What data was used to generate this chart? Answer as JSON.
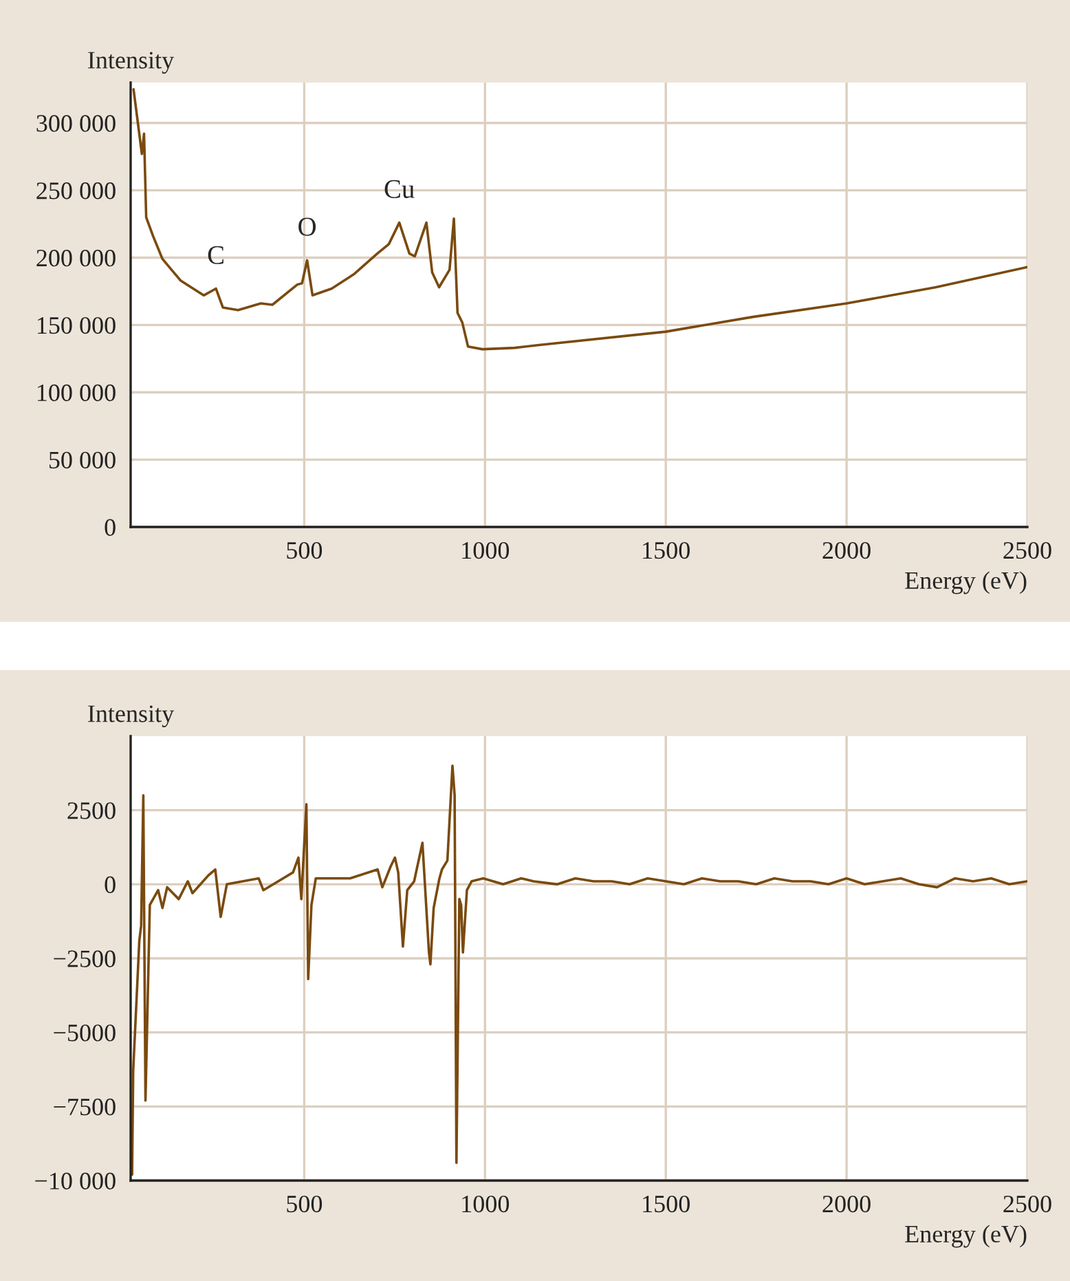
{
  "chart_data": [
    {
      "type": "line",
      "xlabel": "Energy (eV)",
      "ylabel": "Intensity",
      "xlim": [
        20,
        2500
      ],
      "xticks": [
        500,
        1000,
        1500,
        2000,
        2500
      ],
      "ylim": [
        0,
        330000
      ],
      "yticks": [
        0,
        {
          "value": 50000,
          "label": "50 000"
        },
        {
          "value": 100000,
          "label": "100 000"
        },
        {
          "value": 150000,
          "label": "150 000"
        },
        {
          "value": 200000,
          "label": "200 000"
        },
        {
          "value": 250000,
          "label": "250 000"
        },
        {
          "value": 300000,
          "label": "300 000"
        }
      ],
      "grid": true,
      "annotations": [
        {
          "text": "C",
          "x": 256,
          "y": 177000
        },
        {
          "text": "O",
          "x": 508,
          "y": 198000
        },
        {
          "text": "Cu",
          "x": 763,
          "y": 226000
        }
      ],
      "series": [
        {
          "color": "#7a4a0f",
          "x": [
            28,
            51,
            57,
            63,
            82,
            108,
            158,
            222,
            256,
            275,
            317,
            380,
            412,
            481,
            494,
            508,
            523,
            576,
            639,
            702,
            734,
            763,
            791,
            806,
            838,
            854,
            873,
            902,
            914,
            924,
            937,
            953,
            993,
            1082,
            1145,
            1500,
            1741,
            2000,
            2247,
            2500
          ],
          "values": [
            325000,
            277000,
            292000,
            230000,
            216000,
            199000,
            183000,
            172000,
            177000,
            163000,
            161000,
            166000,
            165000,
            180000,
            181000,
            198000,
            172000,
            177000,
            188000,
            203000,
            210000,
            226000,
            203000,
            201000,
            226000,
            189000,
            178000,
            191000,
            229000,
            159000,
            152000,
            134000,
            132000,
            133000,
            135000,
            145000,
            156000,
            166000,
            178000,
            193000
          ]
        }
      ]
    },
    {
      "type": "line",
      "xlabel": "Energy (eV)",
      "ylabel": "Intensity",
      "xlim": [
        20,
        2500
      ],
      "xticks": [
        500,
        1000,
        1500,
        2000,
        2500
      ],
      "ylim": [
        -10000,
        5000
      ],
      "yticks": [
        {
          "value": -10000,
          "label": "−10 000"
        },
        {
          "value": -7500,
          "label": "−7500"
        },
        {
          "value": -5000,
          "label": "−5000"
        },
        {
          "value": -2500,
          "label": "−2500"
        },
        0,
        2500
      ],
      "grid": true,
      "series": [
        {
          "color": "#7a4a0f",
          "x": [
            24,
            27,
            44,
            49,
            55,
            61,
            73,
            96,
            108,
            121,
            153,
            178,
            191,
            235,
            254,
            269,
            286,
            374,
            387,
            469,
            484,
            492,
            506,
            511,
            520,
            532,
            627,
            703,
            716,
            726,
            739,
            751,
            760,
            773,
            785,
            804,
            827,
            845,
            849,
            858,
            874,
            881,
            896,
            910,
            916,
            921,
            929,
            934,
            939,
            950,
            963,
            995,
            1050,
            1100,
            1134,
            1200,
            1250,
            1300,
            1350,
            1400,
            1450,
            1500,
            1550,
            1600,
            1650,
            1700,
            1750,
            1800,
            1850,
            1900,
            1950,
            2000,
            2050,
            2100,
            2150,
            2200,
            2250,
            2300,
            2350,
            2400,
            2450,
            2500
          ],
          "values": [
            -9800,
            -6300,
            -1900,
            -1400,
            3000,
            -7300,
            -700,
            -200,
            -800,
            -100,
            -500,
            100,
            -300,
            300,
            500,
            -1100,
            0,
            200,
            -200,
            400,
            900,
            -500,
            2700,
            -3200,
            -700,
            200,
            200,
            500,
            -100,
            200,
            600,
            900,
            400,
            -2100,
            -200,
            100,
            1400,
            -2300,
            -2700,
            -800,
            200,
            500,
            800,
            4000,
            3000,
            -9400,
            -500,
            -700,
            -2300,
            -200,
            100,
            200,
            0,
            200,
            100,
            0,
            200,
            100,
            100,
            0,
            200,
            100,
            0,
            200,
            100,
            100,
            0,
            200,
            100,
            100,
            0,
            200,
            0,
            100,
            200,
            0,
            -100,
            200,
            100,
            200,
            0,
            100
          ]
        }
      ]
    }
  ]
}
